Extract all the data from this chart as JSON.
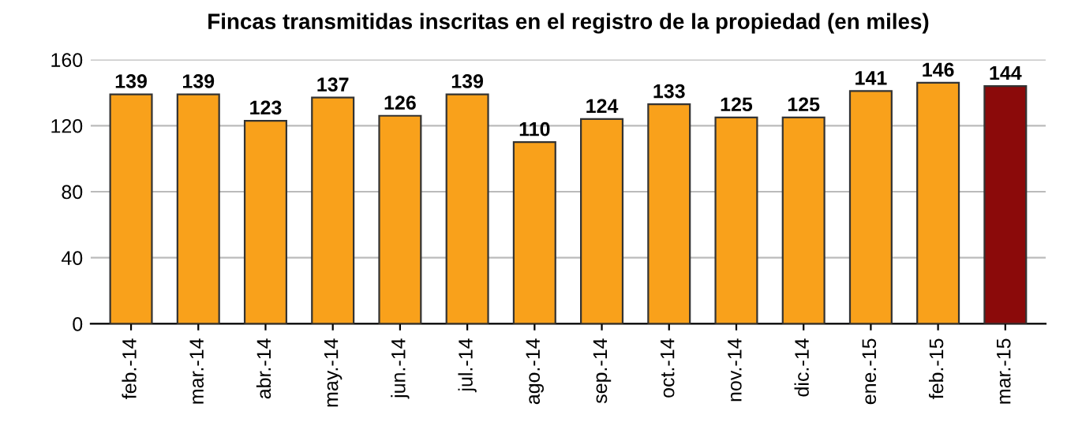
{
  "chart_data": {
    "type": "bar",
    "title": "Fincas transmitidas inscritas en el registro de la propiedad (en miles)",
    "categories": [
      "feb.-14",
      "mar.-14",
      "abr.-14",
      "may.-14",
      "jun.-14",
      "jul.-14",
      "ago.-14",
      "sep.-14",
      "oct.-14",
      "nov.-14",
      "dic.-14",
      "ene.-15",
      "feb.-15",
      "mar.-15"
    ],
    "values": [
      139,
      139,
      123,
      137,
      126,
      139,
      110,
      124,
      133,
      125,
      125,
      141,
      146,
      144
    ],
    "colors": [
      "#f9a11b",
      "#f9a11b",
      "#f9a11b",
      "#f9a11b",
      "#f9a11b",
      "#f9a11b",
      "#f9a11b",
      "#f9a11b",
      "#f9a11b",
      "#f9a11b",
      "#f9a11b",
      "#f9a11b",
      "#f9a11b",
      "#8b0a0a"
    ],
    "ylim": [
      0,
      160
    ],
    "yticks": [
      0,
      40,
      80,
      120,
      160
    ],
    "grid": "y",
    "data_labels": true
  }
}
